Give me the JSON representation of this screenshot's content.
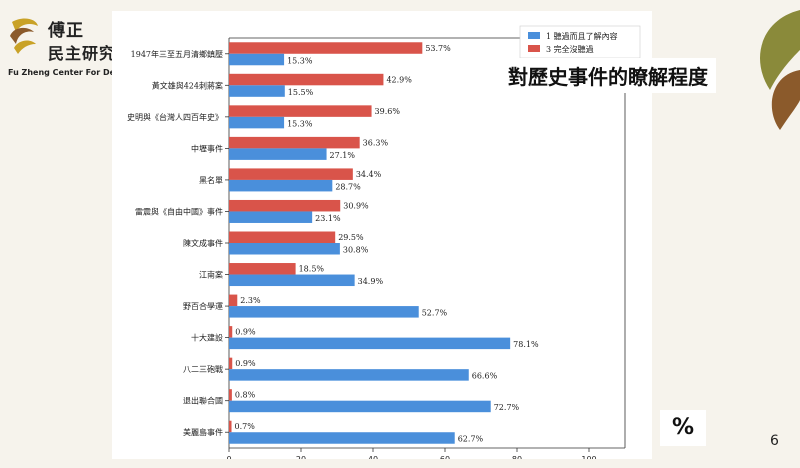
{
  "slide": {
    "title": "對歷史事件的瞭解程度",
    "unit": "%",
    "page_number": "6"
  },
  "logo": {
    "line1": "傅正",
    "line2": "民主研究",
    "line3": "Fu Zheng Center For Dem"
  },
  "colors": {
    "blue": "#4a8fdb",
    "red": "#d9544a",
    "deco_olive": "#8a8a3a",
    "deco_brown": "#8b5a2b",
    "deco_tan": "#d8b866"
  },
  "chart_data": {
    "type": "bar",
    "orientation": "horizontal",
    "categories": [
      "1947年三至五月清鄉鎮壓",
      "黃文雄與424刺蔣案",
      "史明與《台灣人四百年史》",
      "中壢事件",
      "黑名單",
      "雷震與《自由中國》事件",
      "陳文成事件",
      "江南案",
      "野百合學運",
      "十大建設",
      "八二三砲戰",
      "退出聯合國",
      "美麗島事件"
    ],
    "series": [
      {
        "name": "3 完全沒聽過",
        "color": "#d9544a",
        "values": [
          53.7,
          42.9,
          39.6,
          36.3,
          34.4,
          30.9,
          29.5,
          18.5,
          2.3,
          0.9,
          0.9,
          0.8,
          0.7
        ],
        "labels": [
          "53.7%",
          "42.9%",
          "39.6%",
          "36.3%",
          "34.4%",
          "30.9%",
          "29.5%",
          "18.5%",
          "2.3%",
          "0.9%",
          "0.9%",
          "0.8%",
          "0.7%"
        ]
      },
      {
        "name": "1 聽過而且了解內容",
        "color": "#4a8fdb",
        "values": [
          15.3,
          15.5,
          15.3,
          27.1,
          28.7,
          23.1,
          30.8,
          34.9,
          52.7,
          78.1,
          66.6,
          72.7,
          62.7
        ],
        "labels": [
          "15.3%",
          "15.5%",
          "15.3%",
          "27.1%",
          "28.7%",
          "23.1%",
          "30.8%",
          "34.9%",
          "52.7%",
          "78.1%",
          "66.6%",
          "72.7%",
          "62.7%"
        ]
      }
    ],
    "xlim": [
      0,
      110
    ],
    "xticks": [
      0,
      20,
      40,
      60,
      80,
      100
    ],
    "xtick_labels": [
      "0",
      "20",
      "40",
      "60",
      "80",
      "100"
    ],
    "legend": {
      "position": "top-right",
      "order": [
        "1 聽過而且了解內容",
        "3 完全沒聽過"
      ]
    },
    "grid": false
  }
}
